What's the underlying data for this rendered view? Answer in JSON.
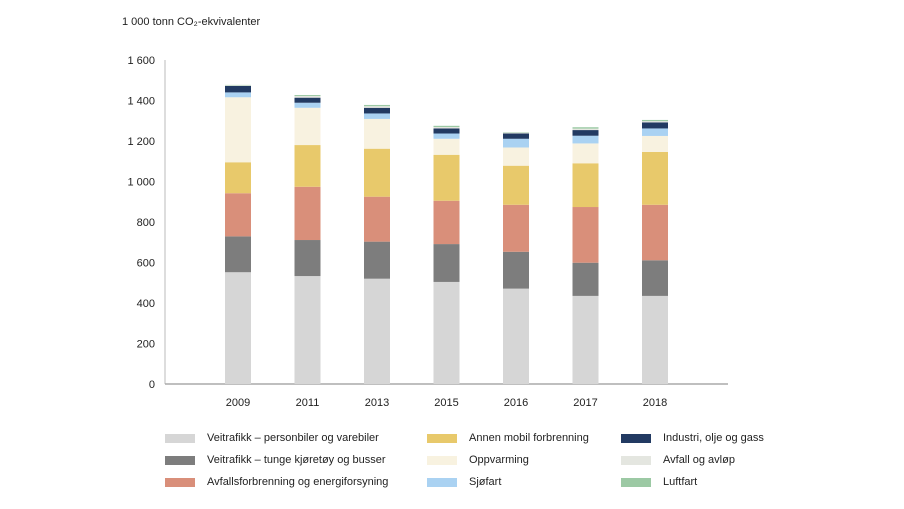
{
  "chart_data": {
    "type": "bar",
    "stacked": true,
    "title": "",
    "ylabel": "1 000 tonn CO₂-ekvivalenter",
    "xlabel": "",
    "ylim": [
      0,
      1600
    ],
    "yticks": [
      0,
      200,
      400,
      600,
      800,
      1000,
      1200,
      1400,
      1600
    ],
    "ytick_labels": [
      "0",
      "200",
      "400",
      "600",
      "800",
      "1 000",
      "1 200",
      "1 400",
      "1 600"
    ],
    "grid": false,
    "legend_position": "bottom",
    "categories": [
      "2009",
      "2011",
      "2013",
      "2015",
      "2016",
      "2017",
      "2018"
    ],
    "series": [
      {
        "name": "Veitrafikk – personbiler og varebiler",
        "color": "#d6d6d6",
        "values": [
          552,
          533,
          520,
          504,
          471,
          435,
          435
        ]
      },
      {
        "name": "Veitrafikk – tunge kjøretøy og busser",
        "color": "#7d7d7d",
        "values": [
          177,
          178,
          183,
          187,
          182,
          164,
          176
        ]
      },
      {
        "name": "Avfallsforbrenning og energiforsyning",
        "color": "#d98f7a",
        "values": [
          213,
          263,
          222,
          214,
          232,
          275,
          274
        ]
      },
      {
        "name": "Annen mobil forbrenning",
        "color": "#e8c96b",
        "values": [
          153,
          206,
          237,
          227,
          193,
          216,
          261
        ]
      },
      {
        "name": "Oppvarming",
        "color": "#f8f2e0",
        "values": [
          321,
          184,
          147,
          79,
          90,
          98,
          79
        ]
      },
      {
        "name": "Sjøfart",
        "color": "#aad2f2",
        "values": [
          24,
          25,
          27,
          26,
          43,
          38,
          37
        ]
      },
      {
        "name": "Industri, olje og gass",
        "color": "#223a62",
        "values": [
          32,
          25,
          28,
          25,
          26,
          28,
          30
        ]
      },
      {
        "name": "Avfall og avløp",
        "color": "#e4e6e0",
        "values": [
          3,
          8,
          8,
          7,
          4,
          7,
          6
        ]
      },
      {
        "name": "Luftfart",
        "color": "#9cc9a4",
        "values": [
          2,
          5,
          6,
          6,
          2,
          7,
          6
        ]
      }
    ]
  }
}
